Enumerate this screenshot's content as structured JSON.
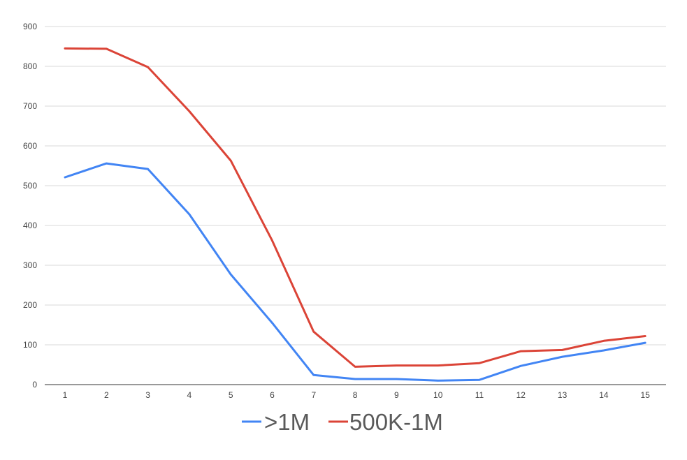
{
  "chart_data": {
    "type": "line",
    "categories": [
      "1",
      "2",
      "3",
      "4",
      "5",
      "6",
      "7",
      "8",
      "9",
      "10",
      "11",
      "12",
      "13",
      "14",
      "15"
    ],
    "ylim": [
      0,
      900
    ],
    "yticks": [
      "0",
      "100",
      "200",
      "300",
      "400",
      "500",
      "600",
      "700",
      "800",
      "900"
    ],
    "grid": true,
    "legend_position": "bottom",
    "series": [
      {
        "name": ">1M",
        "color": "#4285f4",
        "values": [
          521,
          556,
          542,
          428,
          277,
          155,
          24,
          14,
          14,
          10,
          12,
          47,
          70,
          86,
          105
        ]
      },
      {
        "name": "500K-1M",
        "color": "#db4437",
        "values": [
          845,
          844,
          798,
          687,
          563,
          362,
          133,
          45,
          48,
          48,
          54,
          84,
          87,
          110,
          122
        ]
      }
    ]
  }
}
